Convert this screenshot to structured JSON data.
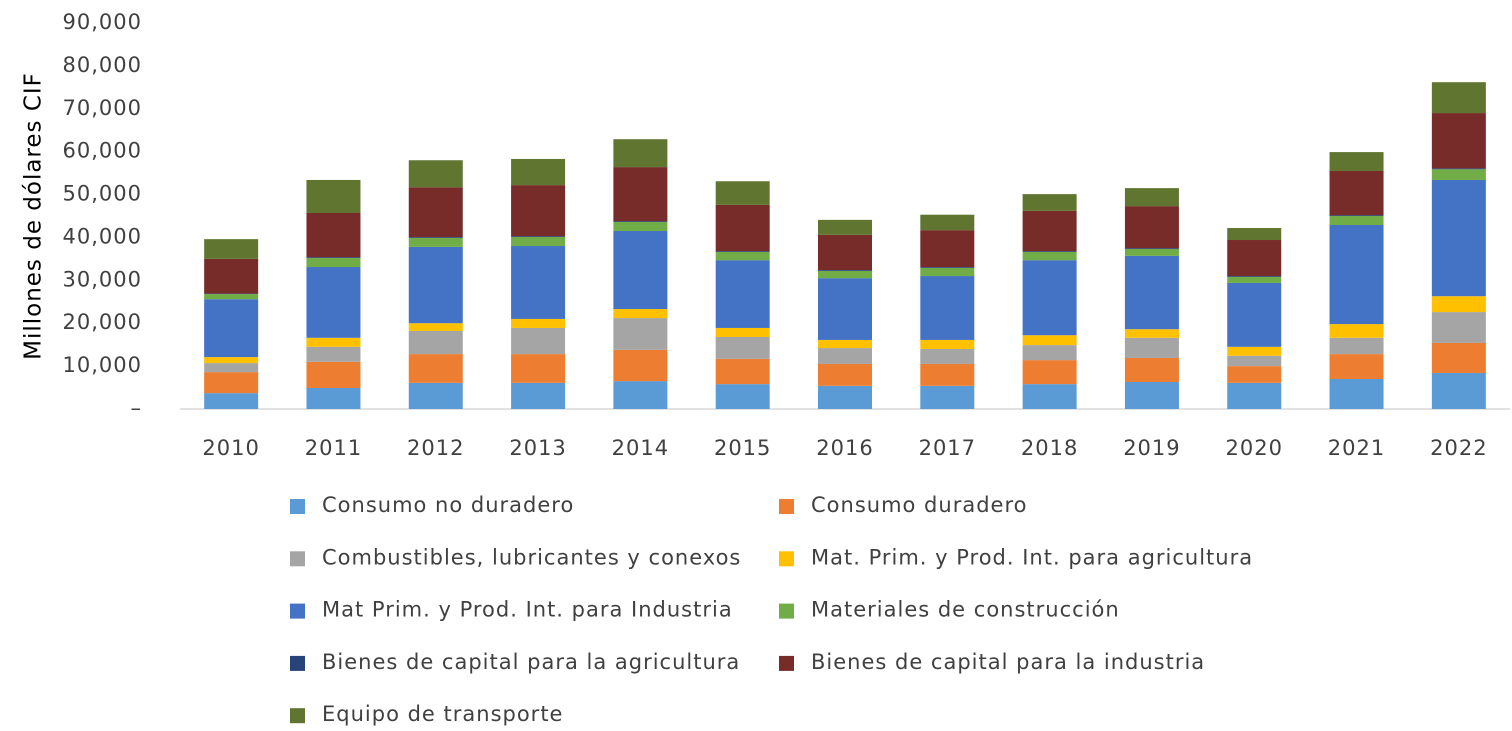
{
  "chart_data": {
    "type": "stacked_bar",
    "y_label": "Millones de dólares CIF",
    "categories": [
      "2010",
      "2011",
      "2012",
      "2013",
      "2014",
      "2015",
      "2016",
      "2017",
      "2018",
      "2019",
      "2020",
      "2021",
      "2022"
    ],
    "series": [
      {
        "name": "Consumo no duradero",
        "color": "#5b9bd5",
        "values": [
          3700,
          4900,
          6100,
          6100,
          6500,
          5800,
          5400,
          5400,
          5800,
          6300,
          6100,
          7000,
          8400
        ]
      },
      {
        "name": "Consumo duradero",
        "color": "#ed7d31",
        "values": [
          4900,
          6100,
          6700,
          6700,
          7300,
          5900,
          5100,
          5100,
          5600,
          5600,
          3900,
          5800,
          7000
        ]
      },
      {
        "name": "Combustibles, lubricantes y conexos",
        "color": "#a5a5a5",
        "values": [
          2100,
          3500,
          5400,
          6100,
          7400,
          5100,
          3700,
          3500,
          3500,
          4700,
          2400,
          3800,
          7200
        ]
      },
      {
        "name": "Mat. Prim. y Prod. Int. para agricultura",
        "color": "#ffc000",
        "values": [
          1400,
          2100,
          1800,
          2100,
          2100,
          2100,
          1900,
          2100,
          2300,
          2000,
          2100,
          3200,
          3700
        ]
      },
      {
        "name": "Mat Prim. y Prod. Int. para Industria",
        "color": "#4472c4",
        "values": [
          13500,
          16500,
          17800,
          17000,
          18200,
          15800,
          14400,
          14900,
          17500,
          17100,
          14900,
          23100,
          27100
        ]
      },
      {
        "name": "Materiales de construcción",
        "color": "#70ad47",
        "values": [
          1200,
          2100,
          2100,
          2100,
          2100,
          1900,
          1700,
          1900,
          1900,
          1600,
          1400,
          2100,
          2500
        ]
      },
      {
        "name": "Bienes de capital para la agricultura",
        "color": "#264478",
        "values": [
          100,
          200,
          200,
          200,
          200,
          200,
          200,
          200,
          200,
          200,
          200,
          200,
          200
        ]
      },
      {
        "name": "Bienes de capital para la industria",
        "color": "#772c2a",
        "values": [
          8100,
          10300,
          11600,
          11900,
          12600,
          10800,
          8200,
          8600,
          9400,
          9800,
          8400,
          10300,
          12900
        ]
      },
      {
        "name": "Equipo de transporte",
        "color": "#5f7530",
        "values": [
          4600,
          7700,
          6300,
          6100,
          6500,
          5500,
          3500,
          3600,
          3900,
          4200,
          2800,
          4400,
          7200
        ]
      }
    ],
    "ylim": [
      0,
      90000
    ],
    "yticks": [
      {
        "value": 0,
        "label": "–"
      },
      {
        "value": 10000,
        "label": "10,000"
      },
      {
        "value": 20000,
        "label": "20,000"
      },
      {
        "value": 30000,
        "label": "30,000"
      },
      {
        "value": 40000,
        "label": "40,000"
      },
      {
        "value": 50000,
        "label": "50,000"
      },
      {
        "value": 60000,
        "label": "60,000"
      },
      {
        "value": 70000,
        "label": "70,000"
      },
      {
        "value": 80000,
        "label": "80,000"
      },
      {
        "value": 90000,
        "label": "90,000"
      }
    ],
    "grid": false
  }
}
